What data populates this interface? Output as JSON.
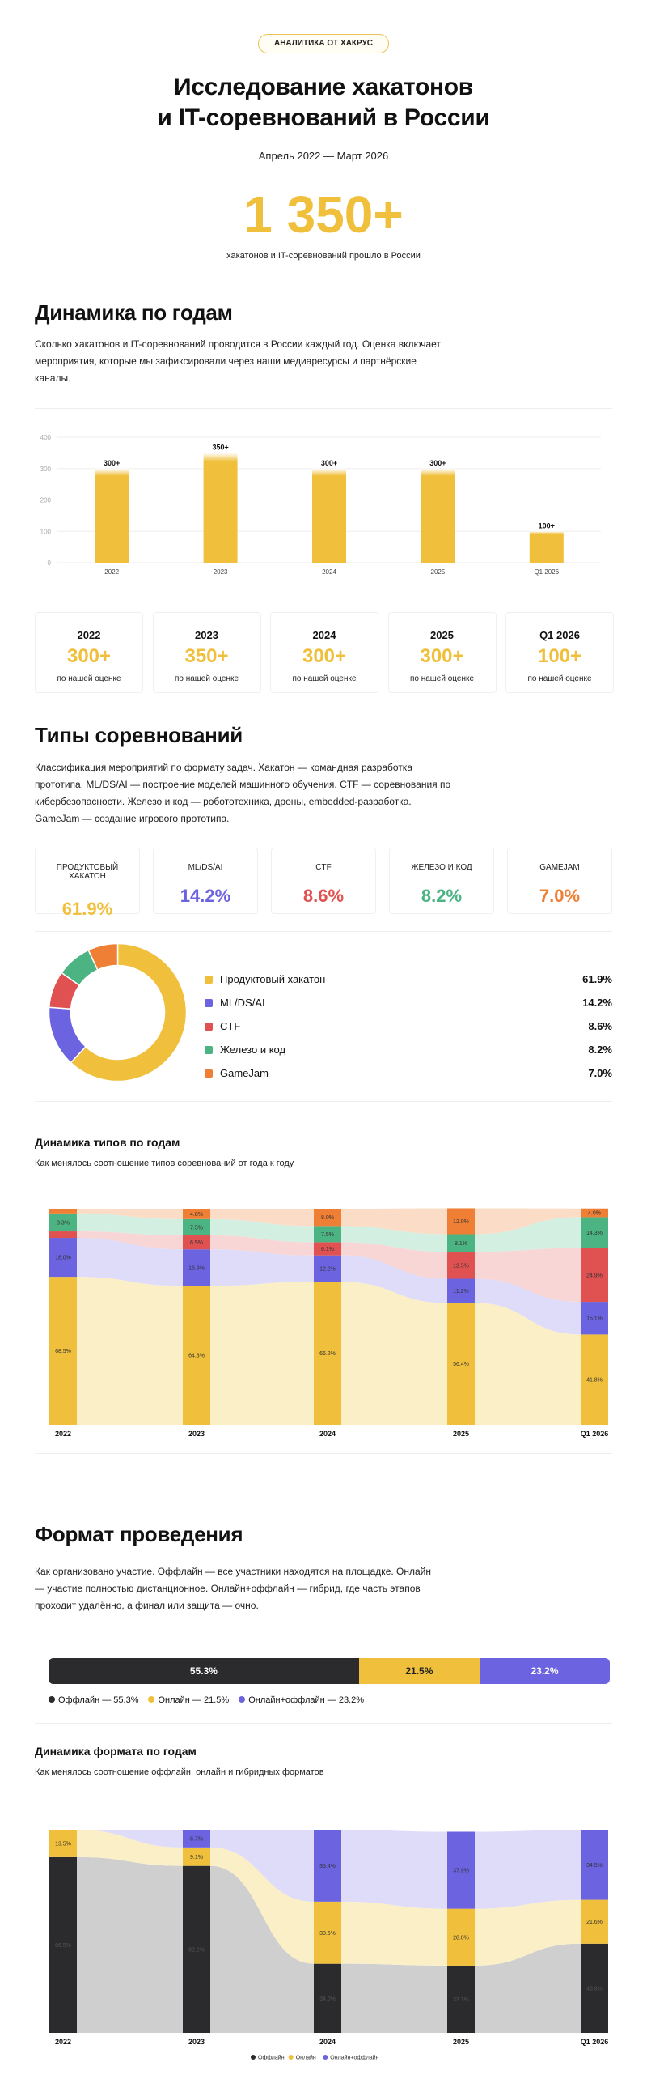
{
  "header": {
    "badge": "АНАЛИТИКА ОТ ХАКРУС",
    "title_line1": "Исследование хакатонов",
    "title_line2": "и IT-соревнований в России",
    "period": "Апрель 2022 — Март 2026",
    "big_number": "1 350+",
    "big_caption": "хакатонов и IT-соревнований прошло в России"
  },
  "dynamics": {
    "title": "Динамика по годам",
    "text": "Сколько хакатонов и IT-соревнований проводится в России каждый год. Оценка включает мероприятия, которые мы зафиксировали через наши медиаресурсы и партнёрские каналы.",
    "cards": [
      {
        "year": "2022",
        "value": "300+",
        "note": "по нашей оценке"
      },
      {
        "year": "2023",
        "value": "350+",
        "note": "по нашей оценке"
      },
      {
        "year": "2024",
        "value": "300+",
        "note": "по нашей оценке"
      },
      {
        "year": "2025",
        "value": "300+",
        "note": "по нашей оценке"
      },
      {
        "year": "Q1 2026",
        "value": "100+",
        "note": "по нашей оценке"
      }
    ]
  },
  "types": {
    "title": "Типы соревнований",
    "text": "Классификация мероприятий по формату задач. Хакатон — командная разработка прототипа. ML/DS/AI — построение моделей машинного обучения. CTF — соревнования по кибербезопасности. Железо и код — робототехника, дроны, embedded-разработка. GameJam — создание игрового прототипа.",
    "cards": [
      {
        "name": "ПРОДУКТОВЫЙ ХАКАТОН",
        "pct": "61.9%",
        "color": "#f0c03c"
      },
      {
        "name": "ML/DS/AI",
        "pct": "14.2%",
        "color": "#6c63e0"
      },
      {
        "name": "CTF",
        "pct": "8.6%",
        "color": "#e05252"
      },
      {
        "name": "ЖЕЛЕЗО И КОД",
        "pct": "8.2%",
        "color": "#4cb383"
      },
      {
        "name": "GAMEJAM",
        "pct": "7.0%",
        "color": "#ef7f35"
      }
    ],
    "legend": [
      {
        "name": "Продуктовый хакатон",
        "pct": "61.9%",
        "color": "#f0c03c"
      },
      {
        "name": "ML/DS/AI",
        "pct": "14.2%",
        "color": "#6c63e0"
      },
      {
        "name": "CTF",
        "pct": "8.6%",
        "color": "#e05252"
      },
      {
        "name": "Железо и код",
        "pct": "8.2%",
        "color": "#4cb383"
      },
      {
        "name": "GameJam",
        "pct": "7.0%",
        "color": "#ef7f35"
      }
    ]
  },
  "types_dyn": {
    "title": "Динамика типов по годам",
    "subtitle": "Как менялось соотношение типов соревнований от года к году"
  },
  "format": {
    "title": "Формат проведения",
    "text": "Как организовано участие. Оффлайн — все участники находятся на площадке. Онлайн — участие полностью дистанционное. Онлайн+оффлайн — гибрид, где часть этапов проходит удалённо, а финал или защита — очно.",
    "segments": [
      {
        "label": "55.3%",
        "value": 55.3,
        "color": "#2b2b2e",
        "text_color": "#ffffff"
      },
      {
        "label": "21.5%",
        "value": 21.5,
        "color": "#f0c03c",
        "text_color": "#222222"
      },
      {
        "label": "23.2%",
        "value": 23.2,
        "color": "#6c63e0",
        "text_color": "#ffffff"
      }
    ],
    "legend": [
      {
        "label": "Оффлайн — 55.3%",
        "color": "#2b2b2e"
      },
      {
        "label": "Онлайн — 21.5%",
        "color": "#f0c03c"
      },
      {
        "label": "Онлайн+оффлайн — 23.2%",
        "color": "#6c63e0"
      }
    ]
  },
  "format_dyn": {
    "title": "Динамика формата по годам",
    "subtitle": "Как менялось соотношение оффлайн, онлайн и гибридных форматов"
  },
  "chart_data": [
    {
      "type": "bar",
      "categories": [
        "2022",
        "2023",
        "2024",
        "2025",
        "Q1 2026"
      ],
      "values": [
        300,
        350,
        300,
        300,
        100
      ],
      "labels": [
        "300+",
        "350+",
        "300+",
        "300+",
        "100+"
      ],
      "yticks": [
        0,
        100,
        200,
        300,
        400
      ],
      "ylim": [
        0,
        400
      ],
      "color": "#f0c03c"
    },
    {
      "type": "pie",
      "categories": [
        "Продуктовый хакатон",
        "ML/DS/AI",
        "CTF",
        "Железо и код",
        "GameJam"
      ],
      "values": [
        61.9,
        14.2,
        8.6,
        8.2,
        7.0
      ],
      "colors": [
        "#f0c03c",
        "#6c63e0",
        "#e05252",
        "#4cb383",
        "#ef7f35"
      ]
    },
    {
      "type": "bar",
      "stacked": true,
      "categories": [
        "2022",
        "2023",
        "2024",
        "2025",
        "Q1 2026"
      ],
      "series": [
        {
          "name": "Продуктовый хакатон",
          "color": "#f0c03c",
          "fade": "#fbefc8",
          "values": [
            68.5,
            64.3,
            66.2,
            56.4,
            41.8
          ],
          "labels": [
            "68.5%",
            "64.3%",
            "66.2%",
            "56.4%",
            "41.8%"
          ]
        },
        {
          "name": "ML/DS/AI",
          "color": "#6c63e0",
          "fade": "#dedcf8",
          "values": [
            18.0,
            16.9,
            12.2,
            11.2,
            15.1
          ],
          "labels": [
            "18.0%",
            "16.9%",
            "12.2%",
            "11.2%",
            "15.1%"
          ]
        },
        {
          "name": "CTF",
          "color": "#e05252",
          "fade": "#f8d6d6",
          "values": [
            3.0,
            6.5,
            6.1,
            12.5,
            24.9
          ],
          "labels": [
            "",
            "6.5%",
            "6.1%",
            "12.5%",
            "24.9%"
          ]
        },
        {
          "name": "Железо и код",
          "color": "#4cb383",
          "fade": "#d3efe2",
          "values": [
            8.3,
            7.5,
            7.5,
            8.1,
            14.3
          ],
          "labels": [
            "8.3%",
            "7.5%",
            "7.5%",
            "8.1%",
            "14.3%"
          ]
        },
        {
          "name": "GameJam",
          "color": "#ef7f35",
          "fade": "#fbdcc6",
          "values": [
            2.2,
            4.8,
            8.0,
            12.0,
            4.0
          ],
          "labels": [
            "",
            "4.8%",
            "8.0%",
            "12.0%",
            "4.0%"
          ]
        }
      ]
    },
    {
      "type": "bar",
      "stacked": true,
      "categories": [
        "2022",
        "2023",
        "2024",
        "2025",
        "Q1 2026"
      ],
      "series": [
        {
          "name": "Оффлайн",
          "color": "#2b2b2e",
          "fade": "#cfcfcf",
          "values": [
            86.5,
            82.2,
            34.0,
            33.1,
            43.9
          ],
          "labels": [
            "86.5%",
            "82.2%",
            "34.0%",
            "33.1%",
            "43.9%"
          ]
        },
        {
          "name": "Онлайн",
          "color": "#f0c03c",
          "fade": "#fbefc8",
          "values": [
            13.5,
            9.1,
            30.6,
            28.0,
            21.6
          ],
          "labels": [
            "13.5%",
            "9.1%",
            "30.6%",
            "28.0%",
            "21.6%"
          ]
        },
        {
          "name": "Онлайн+оффлайн",
          "color": "#6c63e0",
          "fade": "#dedcf8",
          "values": [
            0,
            8.7,
            35.4,
            37.9,
            34.5
          ],
          "labels": [
            "",
            "8.7%",
            "35.4%",
            "37.9%",
            "34.5%"
          ]
        }
      ]
    }
  ]
}
